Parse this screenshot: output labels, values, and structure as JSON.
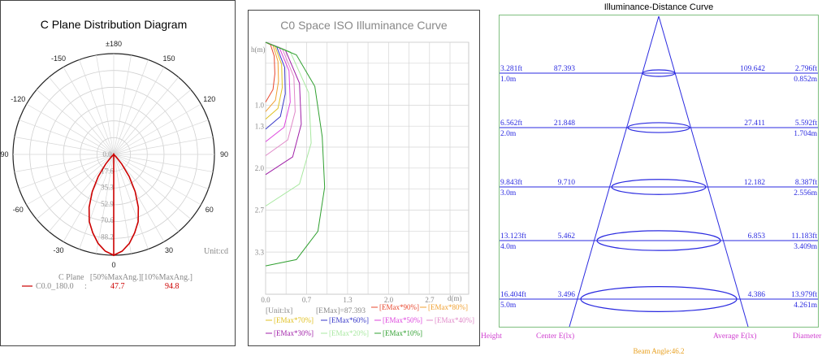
{
  "chart_data": [
    {
      "type": "polar",
      "title": "C Plane Distribution Diagram",
      "unit_label": "Unit:cd",
      "angle_labels": [
        "±180",
        "150",
        "120",
        "90",
        "60",
        "30",
        "0",
        "-30",
        "-60",
        "-90",
        "-120",
        "-150"
      ],
      "radial_labels": [
        "0.0",
        "17.6",
        "35.3",
        "52.9",
        "70.6",
        "88.2"
      ],
      "rmax": 88.2,
      "grid": true,
      "series": [
        {
          "name": "C0.0_180.0",
          "color": "#cc0000",
          "angles": [
            0,
            5,
            10,
            15,
            20,
            25,
            30,
            35,
            40,
            45,
            47.7
          ],
          "values": [
            88.2,
            85.0,
            79.0,
            71.0,
            62.5,
            51.0,
            37.5,
            23.5,
            11.0,
            3.0,
            0
          ]
        }
      ],
      "legend_header": "C Plane   [50%MaxAng.][10%MaxAng.]",
      "legend_rows": [
        {
          "name": "C0.0_180.0",
          "sep": ":",
          "v50": "47.7",
          "v10": "94.8"
        }
      ]
    },
    {
      "type": "line",
      "title": "C0 Space ISO Illuminance Curve",
      "ylabel": "h(m)",
      "xlabel": "d(m)",
      "x_ticks": [
        "0.0",
        "0.7",
        "1.3",
        "2.0",
        "2.7"
      ],
      "y_ticks": [
        "1.0",
        "1.3",
        "2.0",
        "2.7",
        "3.3"
      ],
      "unit": "[Unit:lx]",
      "emax": "[EMax]=87.393",
      "series": [
        {
          "name": "[EMax*90%]",
          "color": "#e8472d",
          "points": [
            [
              0,
              0
            ],
            [
              0.08,
              0.04
            ],
            [
              0.14,
              0.22
            ],
            [
              0.15,
              0.5
            ],
            [
              0.12,
              0.75
            ],
            [
              0.0,
              0.95
            ]
          ]
        },
        {
          "name": "[EMax*80%]",
          "color": "#f0a030",
          "points": [
            [
              0,
              0
            ],
            [
              0.12,
              0.05
            ],
            [
              0.2,
              0.3
            ],
            [
              0.21,
              0.62
            ],
            [
              0.16,
              0.92
            ],
            [
              0.0,
              1.1
            ]
          ]
        },
        {
          "name": "[EMax*70%]",
          "color": "#e0c020",
          "points": [
            [
              0,
              0
            ],
            [
              0.15,
              0.06
            ],
            [
              0.26,
              0.35
            ],
            [
              0.27,
              0.72
            ],
            [
              0.2,
              1.05
            ],
            [
              0.0,
              1.22
            ]
          ]
        },
        {
          "name": "[EMax*60%]",
          "color": "#3636c8",
          "points": [
            [
              0,
              0
            ],
            [
              0.18,
              0.07
            ],
            [
              0.31,
              0.4
            ],
            [
              0.32,
              0.82
            ],
            [
              0.24,
              1.18
            ],
            [
              0.0,
              1.38
            ]
          ]
        },
        {
          "name": "[EMax*50%]",
          "color": "#dd44dd",
          "points": [
            [
              0,
              0
            ],
            [
              0.22,
              0.08
            ],
            [
              0.38,
              0.45
            ],
            [
              0.4,
              0.95
            ],
            [
              0.3,
              1.35
            ],
            [
              0.0,
              1.58
            ]
          ]
        },
        {
          "name": "[EMax*40%]",
          "color": "#e088c8",
          "points": [
            [
              0,
              0
            ],
            [
              0.27,
              0.1
            ],
            [
              0.46,
              0.55
            ],
            [
              0.48,
              1.1
            ],
            [
              0.36,
              1.55
            ],
            [
              0.0,
              1.8
            ]
          ]
        },
        {
          "name": "[EMax*30%]",
          "color": "#a020a8",
          "points": [
            [
              0,
              0
            ],
            [
              0.32,
              0.12
            ],
            [
              0.55,
              0.65
            ],
            [
              0.58,
              1.3
            ],
            [
              0.44,
              1.82
            ],
            [
              0.0,
              2.1
            ]
          ]
        },
        {
          "name": "[EMax*20%]",
          "color": "#a8e8a0",
          "points": [
            [
              0,
              0
            ],
            [
              0.4,
              0.15
            ],
            [
              0.7,
              0.8
            ],
            [
              0.74,
              1.6
            ],
            [
              0.55,
              2.25
            ],
            [
              0.0,
              2.6
            ]
          ]
        },
        {
          "name": "[EMax*10%]",
          "color": "#30a030",
          "points": [
            [
              0,
              0
            ],
            [
              0.5,
              0.2
            ],
            [
              0.8,
              0.7
            ],
            [
              0.92,
              1.5
            ],
            [
              0.96,
              2.3
            ],
            [
              0.85,
              3.0
            ],
            [
              0.5,
              3.45
            ],
            [
              0.0,
              3.55
            ]
          ]
        }
      ],
      "xlim": [
        0,
        3.3
      ],
      "ylim": [
        0,
        4.0
      ]
    },
    {
      "type": "cone",
      "title": "Illuminance-Distance Curve",
      "rows": [
        {
          "height_ft": "3.281ft",
          "center": "87.393",
          "average": "109.642",
          "diameter_ft": "2.796ft",
          "height_m": "1.0m",
          "diameter_m": "0.852m"
        },
        {
          "height_ft": "6.562ft",
          "center": "21.848",
          "average": "27.411",
          "diameter_ft": "5.592ft",
          "height_m": "2.0m",
          "diameter_m": "1.704m"
        },
        {
          "height_ft": "9.843ft",
          "center": "9.710",
          "average": "12.182",
          "diameter_ft": "8.387ft",
          "height_m": "3.0m",
          "diameter_m": "2.556m"
        },
        {
          "height_ft": "13.123ft",
          "center": "5.462",
          "average": "6.853",
          "diameter_ft": "11.183ft",
          "height_m": "4.0m",
          "diameter_m": "3.409m"
        },
        {
          "height_ft": "16.404ft",
          "center": "3.496",
          "average": "4.386",
          "diameter_ft": "13.979ft",
          "height_m": "5.0m",
          "diameter_m": "4.261m"
        }
      ],
      "footer": {
        "height": "Height",
        "center": "Center E(lx)",
        "average": "Average E(lx)",
        "diameter": "Diameter"
      },
      "beam_angle": "Beam Angle:46.2"
    }
  ],
  "colors": {
    "grid": "#c8c8c8",
    "cone": "#2a2ae0",
    "purple": "#d040d0",
    "amber": "#e8a020",
    "red": "#cc0000"
  }
}
